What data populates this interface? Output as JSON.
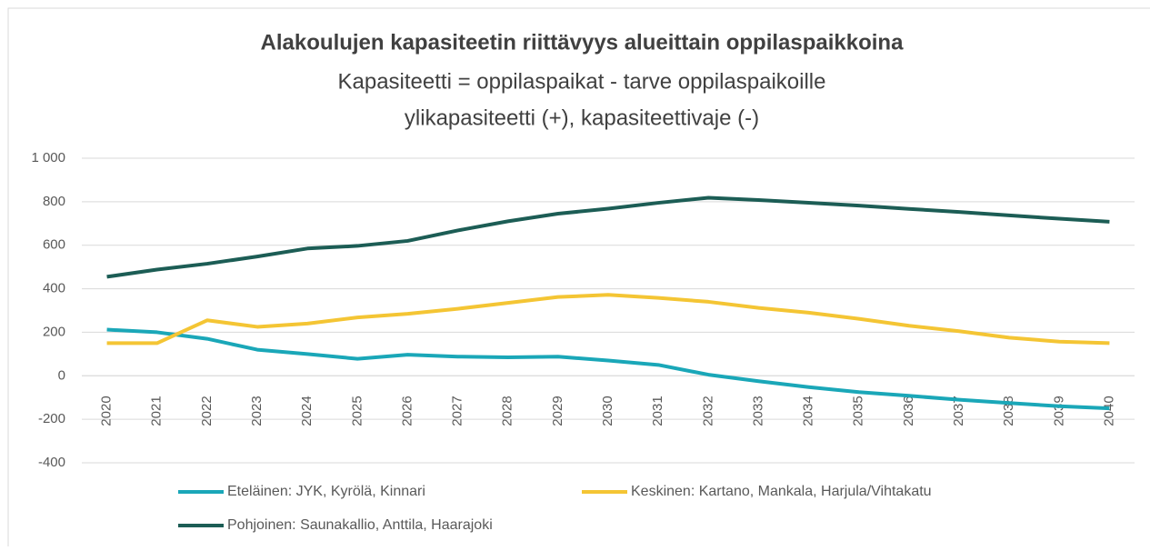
{
  "chart_data": {
    "type": "line",
    "title": "Alakoulujen kapasiteetin riittävyys alueittain oppilaspaikkoina",
    "subtitle": [
      "Kapasiteetti = oppilaspaikat - tarve oppilaspaikoille",
      "ylikapasiteetti (+), kapasiteettivaje (-)"
    ],
    "categories": [
      "2020",
      "2021",
      "2022",
      "2023",
      "2024",
      "2025",
      "2026",
      "2027",
      "2028",
      "2029",
      "2030",
      "2031",
      "2032",
      "2033",
      "2034",
      "2035",
      "2036",
      "2037",
      "2038",
      "2039",
      "2040"
    ],
    "series": [
      {
        "name": "Eteläinen: JYK, Kyrölä, Kinnari",
        "color": "#1aa7b8",
        "values": [
          212,
          200,
          170,
          120,
          100,
          78,
          97,
          88,
          85,
          88,
          70,
          50,
          5,
          -25,
          -52,
          -75,
          -92,
          -110,
          -125,
          -140,
          -150
        ]
      },
      {
        "name": "Keskinen: Kartano, Mankala, Harjula/Vihtakatu",
        "color": "#f4c534",
        "values": [
          150,
          150,
          255,
          225,
          240,
          268,
          285,
          308,
          335,
          362,
          372,
          358,
          340,
          312,
          290,
          262,
          230,
          205,
          175,
          157,
          150
        ]
      },
      {
        "name": "Pohjoinen: Saunakallio, Anttila, Haarajoki",
        "color": "#1c5d55",
        "values": [
          455,
          488,
          515,
          548,
          585,
          597,
          620,
          668,
          710,
          745,
          768,
          795,
          818,
          808,
          795,
          782,
          767,
          753,
          737,
          722,
          708
        ]
      }
    ],
    "ylim": [
      -400,
      1000
    ],
    "yticks": [
      -400,
      -200,
      0,
      200,
      400,
      600,
      800,
      {
        "value": 1000,
        "label": "1 000"
      }
    ],
    "grid": true
  }
}
